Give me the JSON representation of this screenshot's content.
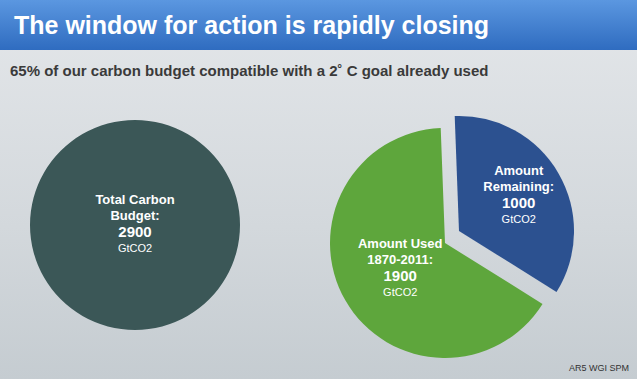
{
  "title": "The window for action is rapidly closing",
  "subtitle": "65% of our carbon budget compatible with a 2˚ C goal already used",
  "source": "AR5 WGI SPM",
  "chart_data": [
    {
      "type": "pie",
      "categories": [
        "Total Carbon Budget:"
      ],
      "values": [
        2900
      ],
      "value_labels": [
        "2900 GtCO2"
      ],
      "colors": [
        "#3b5757"
      ],
      "data_labels": true
    },
    {
      "type": "pie",
      "categories": [
        "Amount Used 1870-2011:",
        "Amount Remaining:"
      ],
      "values": [
        1900,
        1000
      ],
      "value_labels": [
        "1900 GtCO2",
        "1000 GtCO2"
      ],
      "colors": [
        "#5ea63c",
        "#2c5190"
      ],
      "data_labels": true
    }
  ]
}
